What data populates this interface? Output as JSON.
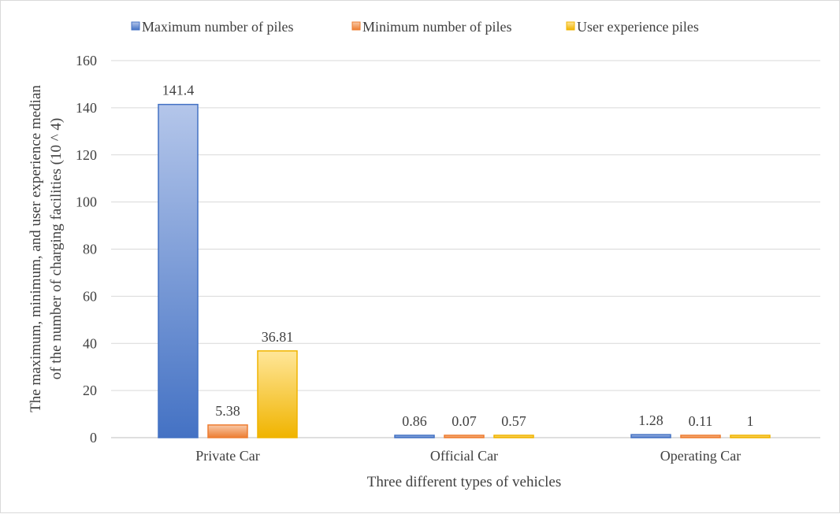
{
  "chart_data": {
    "type": "bar",
    "title": "",
    "xlabel": "Three different types of vehicles",
    "ylabel_lines": [
      "The maximum,  minimum,  and user experience  median",
      "of the number of charging facilities  (10 ^ 4)"
    ],
    "categories": [
      "Private Car",
      "Official Car",
      "Operating Car"
    ],
    "series": [
      {
        "name": "Maximum number of piles",
        "values": [
          141.4,
          0.86,
          1.28
        ],
        "labels": [
          "141.4",
          "0.86",
          "1.28"
        ],
        "color": "#4472c4",
        "light": "#b4c6ea"
      },
      {
        "name": "Minimum number of piles",
        "values": [
          5.38,
          0.07,
          0.11
        ],
        "labels": [
          "5.38",
          "0.07",
          "0.11"
        ],
        "color": "#ed7d31",
        "light": "#f8c9a8"
      },
      {
        "name": "User experience piles",
        "values": [
          36.81,
          0.57,
          1
        ],
        "labels": [
          "36.81",
          "0.57",
          "1"
        ],
        "color": "#f0b400",
        "light": "#ffe699"
      }
    ],
    "ylim": [
      0,
      160
    ],
    "yticks": [
      0,
      20,
      40,
      60,
      80,
      100,
      120,
      140,
      160
    ],
    "grid": true,
    "legend": "top"
  }
}
